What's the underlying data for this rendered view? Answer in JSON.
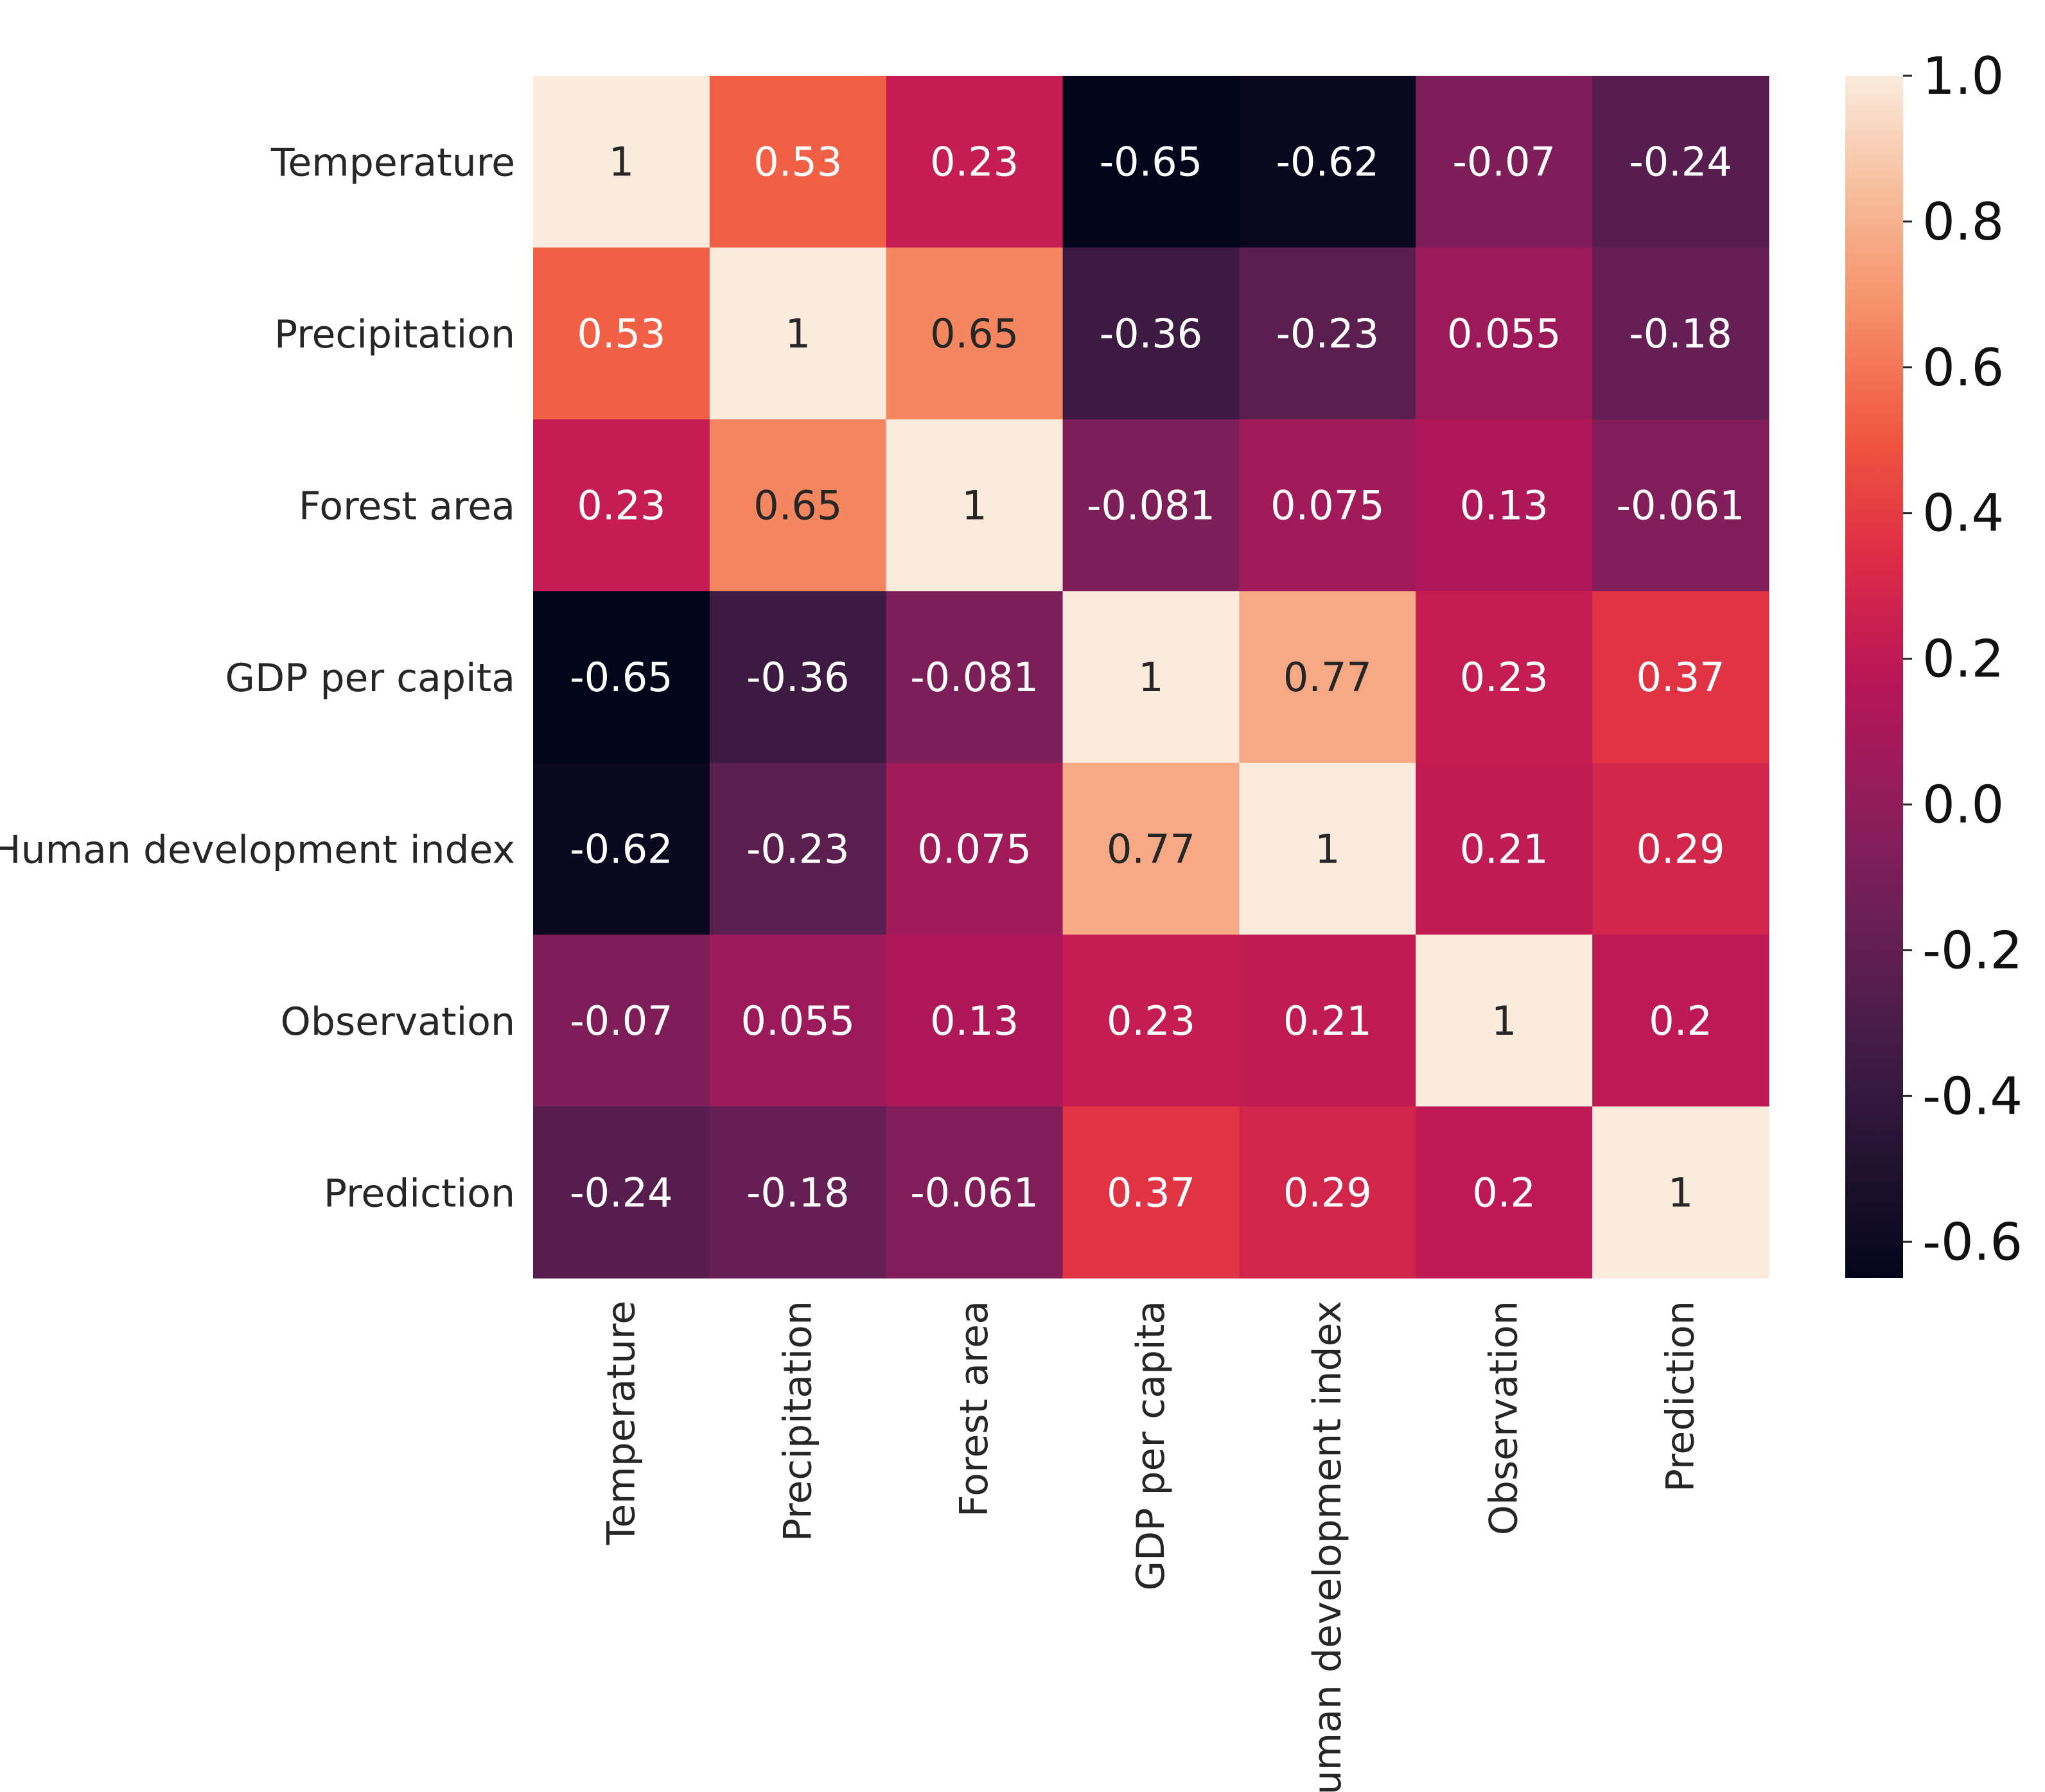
{
  "chart_data": {
    "type": "heatmap",
    "title": "",
    "xlabel": "",
    "ylabel": "",
    "labels": [
      "Temperature",
      "Precipitation",
      "Forest area",
      "GDP per capita",
      "Human development index",
      "Observation",
      "Prediction"
    ],
    "values": [
      [
        "1",
        "0.53",
        "0.23",
        "-0.65",
        "-0.62",
        "-0.07",
        "-0.24"
      ],
      [
        "0.53",
        "1",
        "0.65",
        "-0.36",
        "-0.23",
        "0.055",
        "-0.18"
      ],
      [
        "0.23",
        "0.65",
        "1",
        "-0.081",
        "0.075",
        "0.13",
        "-0.061"
      ],
      [
        "-0.65",
        "-0.36",
        "-0.081",
        "1",
        "0.77",
        "0.23",
        "0.37"
      ],
      [
        "-0.62",
        "-0.23",
        "0.075",
        "0.77",
        "1",
        "0.21",
        "0.29"
      ],
      [
        "-0.07",
        "0.055",
        "0.13",
        "0.23",
        "0.21",
        "1",
        "0.2"
      ],
      [
        "-0.24",
        "-0.18",
        "-0.061",
        "0.37",
        "0.29",
        "0.2",
        "1"
      ]
    ],
    "colorbar": {
      "range": [
        -0.65,
        1.0
      ],
      "ticks": [
        "1.0",
        "0.8",
        "0.6",
        "0.4",
        "0.2",
        "0.0",
        "-0.2",
        "-0.4",
        "-0.6"
      ],
      "colormap": "rocket"
    }
  }
}
